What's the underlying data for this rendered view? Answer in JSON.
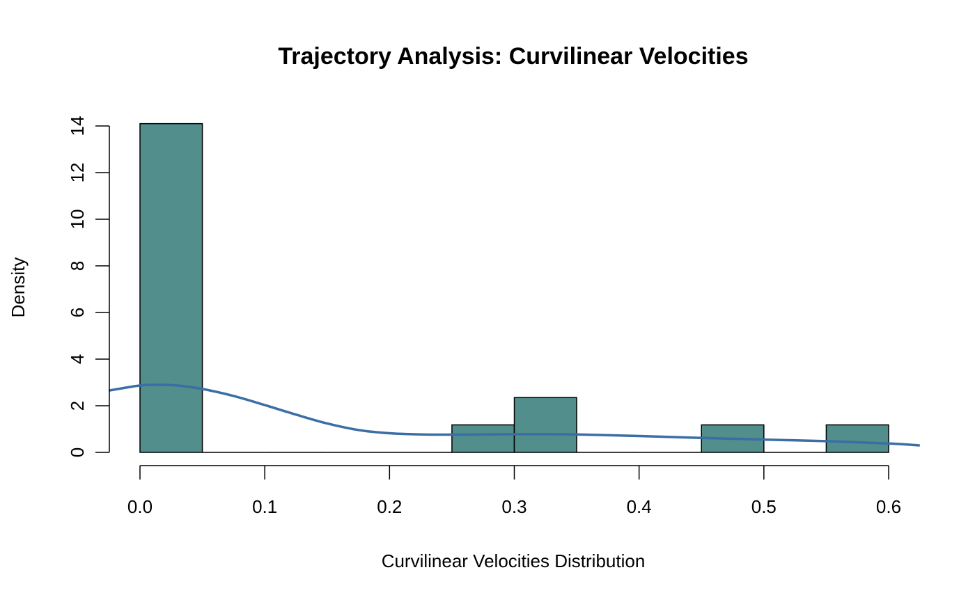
{
  "chart_data": {
    "type": "histogram",
    "title": "Trajectory Analysis: Curvilinear Velocities",
    "xlabel": "Curvilinear Velocities Distribution",
    "ylabel": "Density",
    "xlim": [
      -0.025,
      0.625
    ],
    "ylim": [
      0,
      14.5
    ],
    "x_ticks": [
      0.0,
      0.1,
      0.2,
      0.3,
      0.4,
      0.5,
      0.6
    ],
    "x_tick_labels": [
      "0.0",
      "0.1",
      "0.2",
      "0.3",
      "0.4",
      "0.5",
      "0.6"
    ],
    "y_ticks": [
      0,
      2,
      4,
      6,
      8,
      10,
      12,
      14
    ],
    "y_tick_labels": [
      "0",
      "2",
      "4",
      "6",
      "8",
      "10",
      "12",
      "14"
    ],
    "grid": false,
    "bins": [
      {
        "start": 0.0,
        "end": 0.05,
        "density": 14.1
      },
      {
        "start": 0.05,
        "end": 0.1,
        "density": 0
      },
      {
        "start": 0.1,
        "end": 0.15,
        "density": 0
      },
      {
        "start": 0.15,
        "end": 0.2,
        "density": 0
      },
      {
        "start": 0.2,
        "end": 0.25,
        "density": 0
      },
      {
        "start": 0.25,
        "end": 0.3,
        "density": 1.18
      },
      {
        "start": 0.3,
        "end": 0.35,
        "density": 2.35
      },
      {
        "start": 0.35,
        "end": 0.4,
        "density": 0
      },
      {
        "start": 0.4,
        "end": 0.45,
        "density": 0
      },
      {
        "start": 0.45,
        "end": 0.5,
        "density": 1.18
      },
      {
        "start": 0.5,
        "end": 0.55,
        "density": 0
      },
      {
        "start": 0.55,
        "end": 0.6,
        "density": 1.18
      }
    ],
    "density_curve": {
      "x": [
        -0.025,
        0.0,
        0.015,
        0.03,
        0.05,
        0.075,
        0.1,
        0.125,
        0.15,
        0.175,
        0.2,
        0.225,
        0.25,
        0.275,
        0.3,
        0.325,
        0.35,
        0.4,
        0.45,
        0.5,
        0.55,
        0.6,
        0.625
      ],
      "y": [
        2.65,
        2.87,
        2.9,
        2.87,
        2.72,
        2.42,
        2.03,
        1.62,
        1.24,
        0.96,
        0.82,
        0.77,
        0.76,
        0.77,
        0.78,
        0.78,
        0.77,
        0.7,
        0.62,
        0.55,
        0.48,
        0.38,
        0.3
      ]
    },
    "colors": {
      "bar_fill": "#518E8C",
      "bar_stroke": "#000000",
      "curve": "#3A6EA5"
    }
  }
}
